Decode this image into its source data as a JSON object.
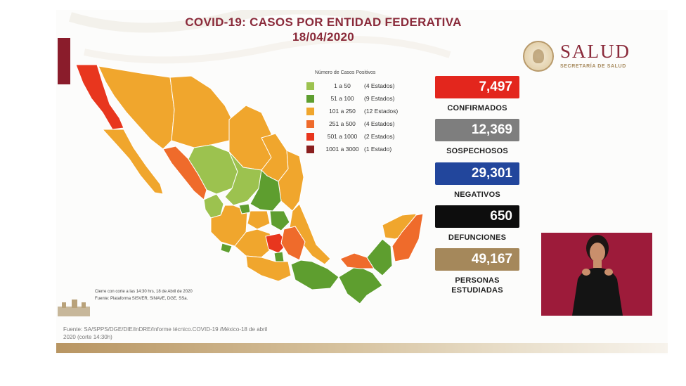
{
  "header": {
    "title_line1": "COVID-19: CASOS POR ENTIDAD FEDERATIVA",
    "title_line2": "18/04/2020"
  },
  "logo": {
    "name": "SALUD",
    "subtitle": "SECRETARÍA DE SALUD"
  },
  "legend": {
    "title": "Número de Casos Positivos",
    "items": [
      {
        "range": "1 a 50",
        "count": "(4 Estados)",
        "color": "#9cc24f"
      },
      {
        "range": "51 a 100",
        "count": "(9 Estados)",
        "color": "#5e9e2f"
      },
      {
        "range": "101 a 250",
        "count": "(12 Estados)",
        "color": "#f0a62d"
      },
      {
        "range": "251 a 500",
        "count": "(4 Estados)",
        "color": "#ef6b2b"
      },
      {
        "range": "501 a 1000",
        "count": "(2 Estados)",
        "color": "#e8361e"
      },
      {
        "range": "1001 a 3000",
        "count": "(1 Estado)",
        "color": "#8a1f1f"
      }
    ]
  },
  "stats": [
    {
      "value": "7,497",
      "label": "CONFIRMADOS",
      "color": "#e3261d"
    },
    {
      "value": "12,369",
      "label": "SOSPECHOSOS",
      "color": "#7e7e7e"
    },
    {
      "value": "29,301",
      "label": "NEGATIVOS",
      "color": "#22469c"
    },
    {
      "value": "650",
      "label": "DEFUNCIONES",
      "color": "#0d0d0d"
    },
    {
      "value": "49,167",
      "label": "PERSONAS ESTUDIADAS",
      "label_line1": "PERSONAS",
      "label_line2": "ESTUDIADAS",
      "color": "#a5885b"
    }
  ],
  "map_notes": {
    "cutoff": "Cierre con corte a las 14:30 hrs, 18 de Abril de 2020",
    "platform": "Fuente: Plataforma SISVER, SINAVE, DGE, SSa."
  },
  "source": {
    "line1": "Fuente: SA/SPPS/DGE/DIE/InDRE/Informe técnico.COVID-19 /México-18 de abril",
    "line2": "2020 (corte 14:30h)"
  }
}
